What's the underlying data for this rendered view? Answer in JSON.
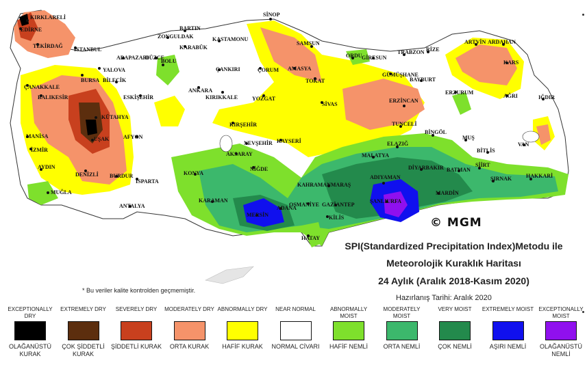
{
  "title": {
    "line1": "SPI(Standardized Precipitation Index)Metodu ile",
    "line2": "Meteorolojik Kuraklık Haritası",
    "line3": "24 Aylık (Aralık 2018-Kasım 2020)"
  },
  "prepared_date": "Hazırlanış Tarihi: Aralık 2020",
  "note": "* Bu veriler kalite kontrolden geçmemiştir.",
  "watermark": "© MGM",
  "cities": [
    "KIRKLARELİ",
    "EDİRNE",
    "TEKİRDAĞ",
    "İSTANBUL",
    "YALOVA",
    "ÇANAKKALE",
    "BURSA",
    "BALIKESİR",
    "KÜTAHYA",
    "MANİSA",
    "İZMİR",
    "UŞAK",
    "AYDIN",
    "DENİZLİ",
    "MUĞLA",
    "BURDUR",
    "ISPARTA",
    "ANTALYA",
    "AFYON",
    "ESKİŞEHİR",
    "BİLECİK",
    "ADAPAZARI",
    "DÜZCE",
    "BOLU",
    "BARTIN",
    "ZONGULDAK",
    "KARABÜK",
    "KASTAMONU",
    "SİNOP",
    "SAMSUN",
    "ORDU",
    "GİRESUN",
    "TRABZON",
    "RİZE",
    "ARTVİN",
    "ARDAHAN",
    "KARS",
    "IĞDIR",
    "AĞRI",
    "ERZURUM",
    "BAYBURT",
    "GÜMÜŞHANE",
    "ERZİNCAN",
    "TUNCELİ",
    "BİNGÖL",
    "MUŞ",
    "BİTLİS",
    "VAN",
    "SİİRT",
    "BATMAN",
    "ŞIRNAK",
    "HAKKARİ",
    "MARDİN",
    "DİYARBAKIR",
    "ELAZIĞ",
    "MALATYA",
    "ADIYAMAN",
    "ŞANLIURFA",
    "GAZİANTEP",
    "KİLİS",
    "OSMANİYE",
    "KAHRAMANMARAŞ",
    "ADANA",
    "MERSİN",
    "HATAY",
    "KARAMAN",
    "KONYA",
    "AKSARAY",
    "NİĞDE",
    "NEVŞEHİR",
    "KIRŞEHİR",
    "KAYSERİ",
    "SİVAS",
    "TOKAT",
    "AMASYA",
    "ÇORUM",
    "YOZGAT",
    "KIRIKKALE",
    "ANKARA",
    "ÇANKIRI",
    "KIRIKKALE"
  ],
  "legend": [
    {
      "top": "EXCEPTIONALLY DRY",
      "bottom": "OLAĞANÜSTÜ KURAK",
      "color": "#000000"
    },
    {
      "top": "EXTREMELY DRY",
      "bottom": "ÇOK ŞİDDETLİ KURAK",
      "color": "#5c2e0e"
    },
    {
      "top": "SEVERELY DRY",
      "bottom": "ŞİDDETLİ KURAK",
      "color": "#c8401e"
    },
    {
      "top": "MODERATELY DRY",
      "bottom": "ORTA KURAK",
      "color": "#f5936a"
    },
    {
      "top": "ABNORMALLY DRY",
      "bottom": "HAFİF KURAK",
      "color": "#ffff00"
    },
    {
      "top": "NEAR NORMAL",
      "bottom": "NORMAL CİVARI",
      "color": "#ffffff"
    },
    {
      "top": "ABNORMALLY MOIST",
      "bottom": "HAFİF NEMLİ",
      "color": "#7ee02c"
    },
    {
      "top": "MODERATELY MOIST",
      "bottom": "ORTA NEMLİ",
      "color": "#3cb86c"
    },
    {
      "top": "VERY MOIST",
      "bottom": "ÇOK NEMLİ",
      "color": "#238a4c"
    },
    {
      "top": "EXTREMELY MOIST",
      "bottom": "AŞIRI NEMLİ",
      "color": "#1010ee"
    },
    {
      "top": "EXCEPTIONALLY MOIST",
      "bottom": "OLAĞANÜSTÜ NEMLİ",
      "color": "#9010ee"
    }
  ]
}
